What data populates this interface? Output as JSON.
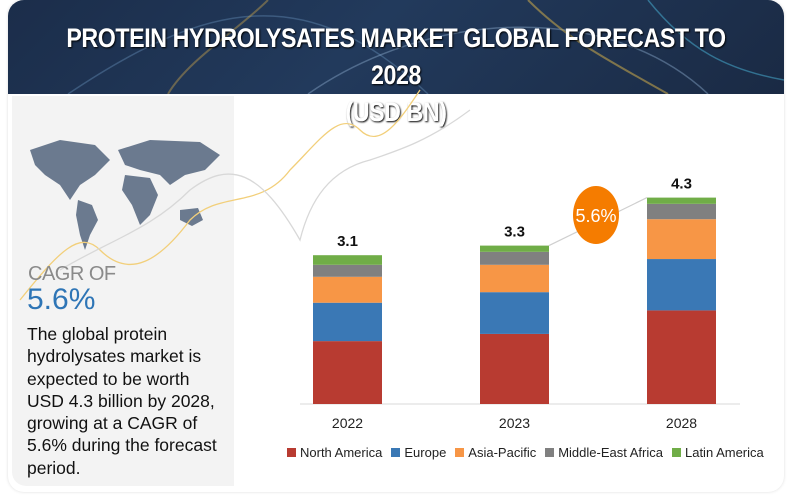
{
  "colors": {
    "header_bg": "#1f3352",
    "bubble": "#f57c00",
    "cagr_value": "#2e75b6"
  },
  "header": {
    "title_line1": "PROTEIN HYDROLYSATES MARKET GLOBAL FORECAST TO 2028",
    "title_line2": "(USD BN)"
  },
  "left_panel": {
    "map_icon": "world-map",
    "cagr_label": "CAGR OF",
    "cagr_value": "5.6%",
    "description": "The global protein hydrolysates market is expected to be worth USD 4.3 billion by 2028, growing at a CAGR of 5.6% during the forecast period."
  },
  "chart_data": {
    "type": "bar",
    "stacked": true,
    "title": "PROTEIN HYDROLYSATES MARKET GLOBAL FORECAST TO 2028 (USD BN)",
    "categories": [
      "2022",
      "2023",
      "2028"
    ],
    "totals": [
      "3.1",
      "3.3",
      "4.3"
    ],
    "cagr_annotation": "5.6%",
    "legend_position": "bottom",
    "grid": false,
    "series": [
      {
        "name": "North America",
        "color": "#b83b31",
        "values": [
          1.31,
          1.46,
          1.95
        ]
      },
      {
        "name": "Europe",
        "color": "#3a78b5",
        "values": [
          0.8,
          0.87,
          1.07
        ]
      },
      {
        "name": "Asia-Pacific",
        "color": "#f79646",
        "values": [
          0.54,
          0.57,
          0.83
        ]
      },
      {
        "name": "Middle-East Africa",
        "color": "#808080",
        "values": [
          0.25,
          0.27,
          0.32
        ]
      },
      {
        "name": "Latin America",
        "color": "#70ad47",
        "values": [
          0.2,
          0.13,
          0.13
        ]
      }
    ]
  }
}
